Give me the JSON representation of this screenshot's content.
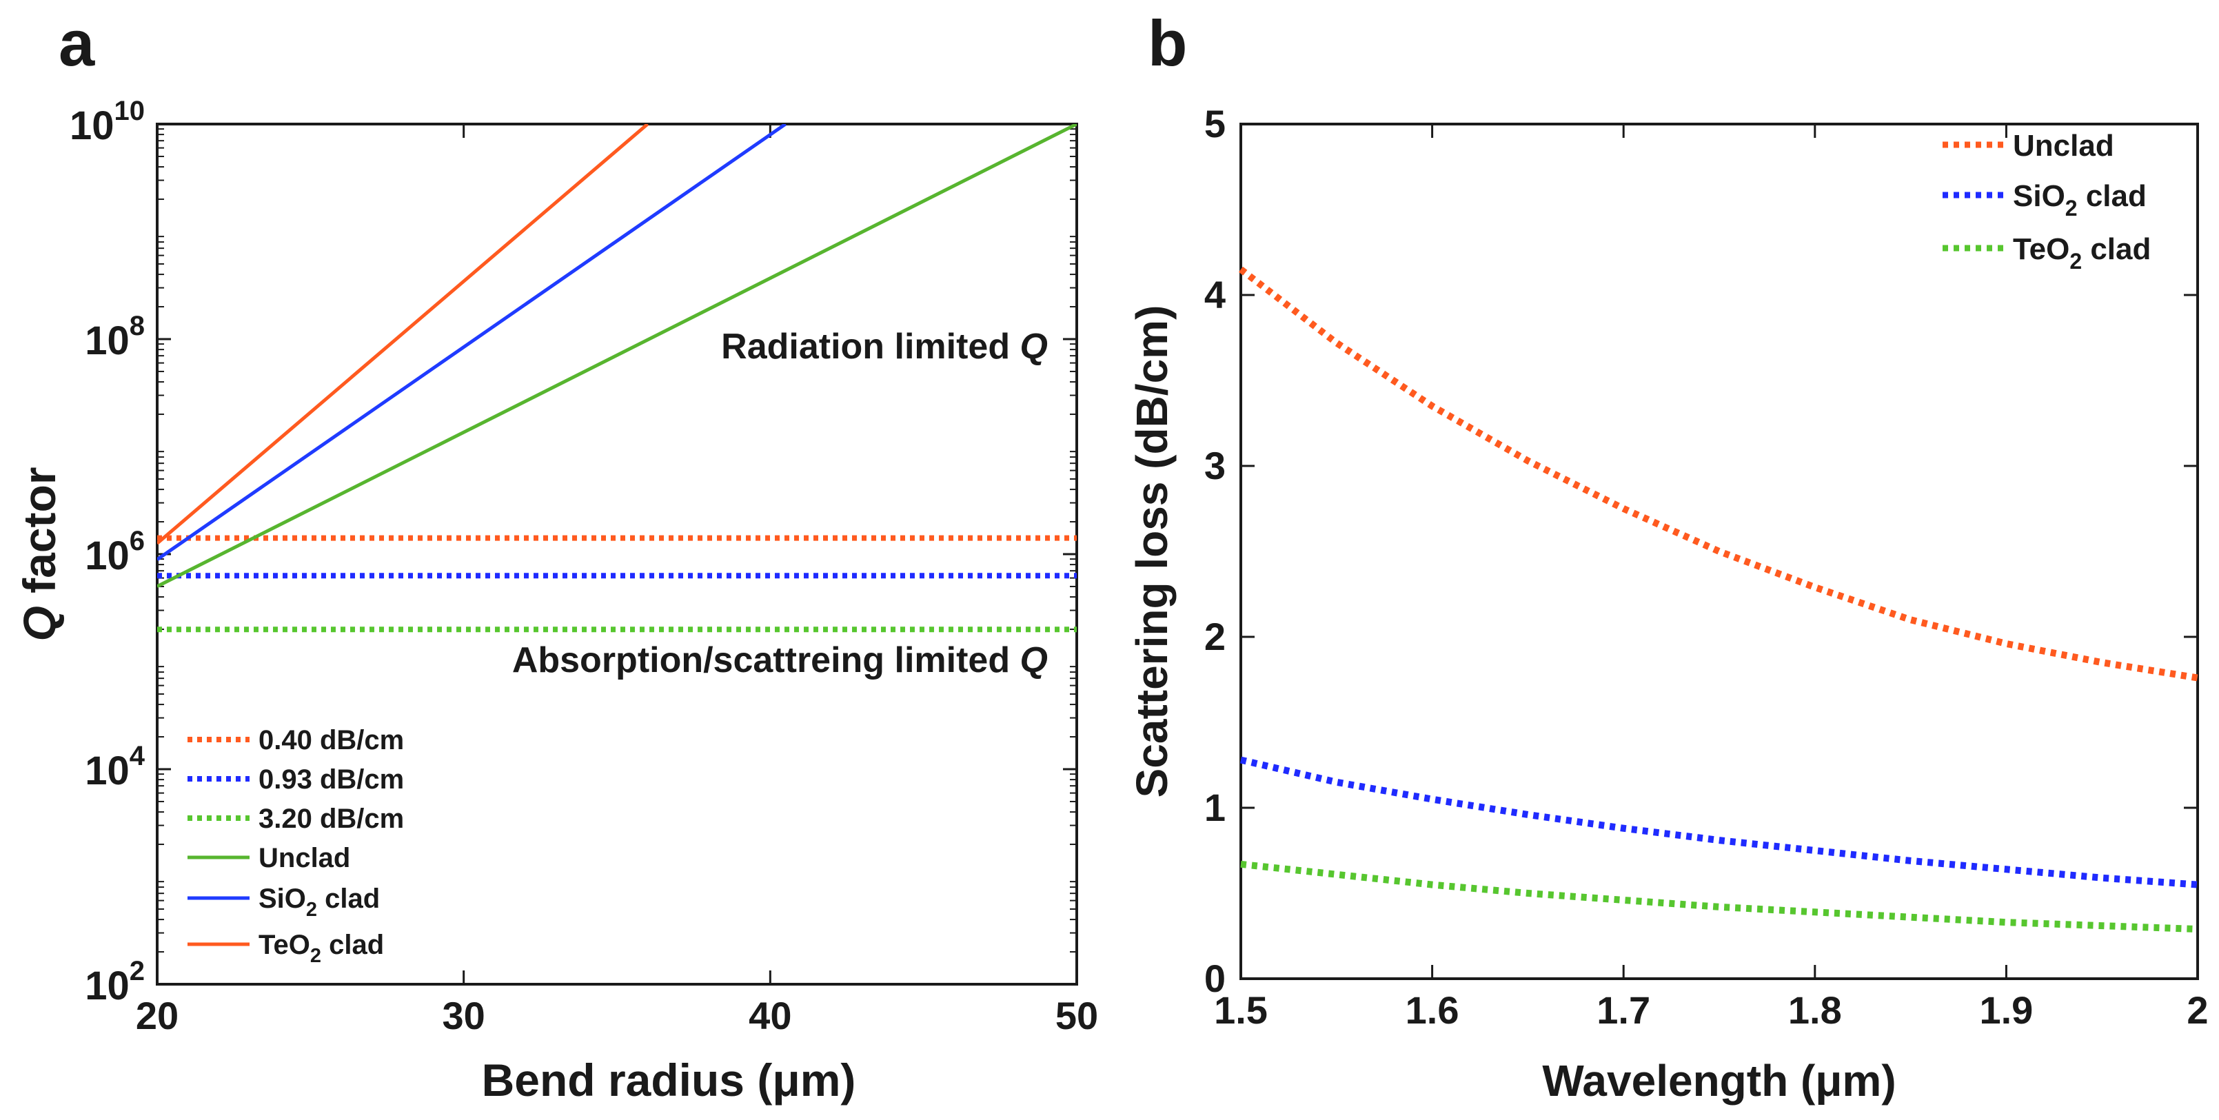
{
  "colors": {
    "unclad": "#ff5a1f",
    "sio2": "#1f2bff",
    "teo2": "#57c62f",
    "legend_unclad_solid": "#57b52f",
    "legend_sio2_solid": "#1f3bff",
    "legend_teo2_solid": "#ff5a1f",
    "axis": "#1a1a1a"
  },
  "chart_data": [
    {
      "panel": "a",
      "type": "line",
      "yscale": "log",
      "xlabel": "Bend radius (μm)",
      "ylabel": "Q factor",
      "xlim": [
        20,
        50
      ],
      "ylim_log10": [
        2,
        10
      ],
      "xticks": [
        "20",
        "30",
        "40",
        "50"
      ],
      "yticks": [
        {
          "base": "10",
          "exp": "2"
        },
        {
          "base": "10",
          "exp": "4"
        },
        {
          "base": "10",
          "exp": "6"
        },
        {
          "base": "10",
          "exp": "8"
        },
        {
          "base": "10",
          "exp": "10"
        }
      ],
      "annotations": [
        {
          "text": "Radiation limited ",
          "italic": "Q"
        },
        {
          "text": "Absorption/scattreing limited ",
          "italic": "Q"
        }
      ],
      "series": [
        {
          "name": "0.40 dB/cm",
          "style": "dotted",
          "color_key": "unclad",
          "x": [
            20,
            50
          ],
          "log10_q": [
            6.15,
            6.15
          ]
        },
        {
          "name": "0.93 dB/cm",
          "style": "dotted",
          "color_key": "sio2",
          "x": [
            20,
            50
          ],
          "log10_q": [
            5.8,
            5.8
          ]
        },
        {
          "name": "3.20 dB/cm",
          "style": "dotted",
          "color_key": "teo2",
          "x": [
            20,
            50
          ],
          "log10_q": [
            5.3,
            5.3
          ]
        },
        {
          "name": "Unclad",
          "style": "solid",
          "color_key": "legend_unclad_solid",
          "x": [
            20,
            50
          ],
          "log10_q": [
            5.7,
            10.0
          ]
        },
        {
          "name": "SiO",
          "sub": "2",
          "name_suffix": " clad",
          "style": "solid",
          "color_key": "legend_sio2_solid",
          "x": [
            20,
            40.5
          ],
          "log10_q": [
            5.95,
            10.0
          ]
        },
        {
          "name": "TeO",
          "sub": "2",
          "name_suffix": " clad",
          "style": "solid",
          "color_key": "legend_teo2_solid",
          "x": [
            20,
            36
          ],
          "log10_q": [
            6.1,
            10.0
          ]
        }
      ]
    },
    {
      "panel": "b",
      "type": "line",
      "xlabel": "Wavelength (μm)",
      "ylabel": "Scattering loss (dB/cm)",
      "xlim": [
        1.5,
        2
      ],
      "ylim": [
        0,
        5
      ],
      "xticks": [
        "1.5",
        "1.6",
        "1.7",
        "1.8",
        "1.9",
        "2"
      ],
      "yticks": [
        "0",
        "1",
        "2",
        "3",
        "4",
        "5"
      ],
      "series": [
        {
          "name": "Unclad",
          "style": "dotted",
          "color_key": "unclad",
          "x": [
            1.5,
            1.55,
            1.6,
            1.65,
            1.7,
            1.75,
            1.8,
            1.85,
            1.9,
            1.95,
            2.0
          ],
          "y": [
            4.15,
            3.72,
            3.35,
            3.03,
            2.75,
            2.5,
            2.29,
            2.1,
            1.96,
            1.85,
            1.76
          ]
        },
        {
          "name": "SiO",
          "sub": "2",
          "name_suffix": " clad",
          "style": "dotted",
          "color_key": "sio2",
          "x": [
            1.5,
            1.55,
            1.6,
            1.65,
            1.7,
            1.75,
            1.8,
            1.85,
            1.9,
            1.95,
            2.0
          ],
          "y": [
            1.28,
            1.15,
            1.05,
            0.96,
            0.88,
            0.81,
            0.75,
            0.69,
            0.64,
            0.59,
            0.55
          ]
        },
        {
          "name": "TeO",
          "sub": "2",
          "name_suffix": " clad",
          "style": "dotted",
          "color_key": "teo2",
          "x": [
            1.5,
            1.55,
            1.6,
            1.65,
            1.7,
            1.75,
            1.8,
            1.85,
            1.9,
            1.95,
            2.0
          ],
          "y": [
            0.67,
            0.61,
            0.55,
            0.5,
            0.46,
            0.42,
            0.39,
            0.36,
            0.33,
            0.31,
            0.29
          ]
        }
      ]
    }
  ]
}
